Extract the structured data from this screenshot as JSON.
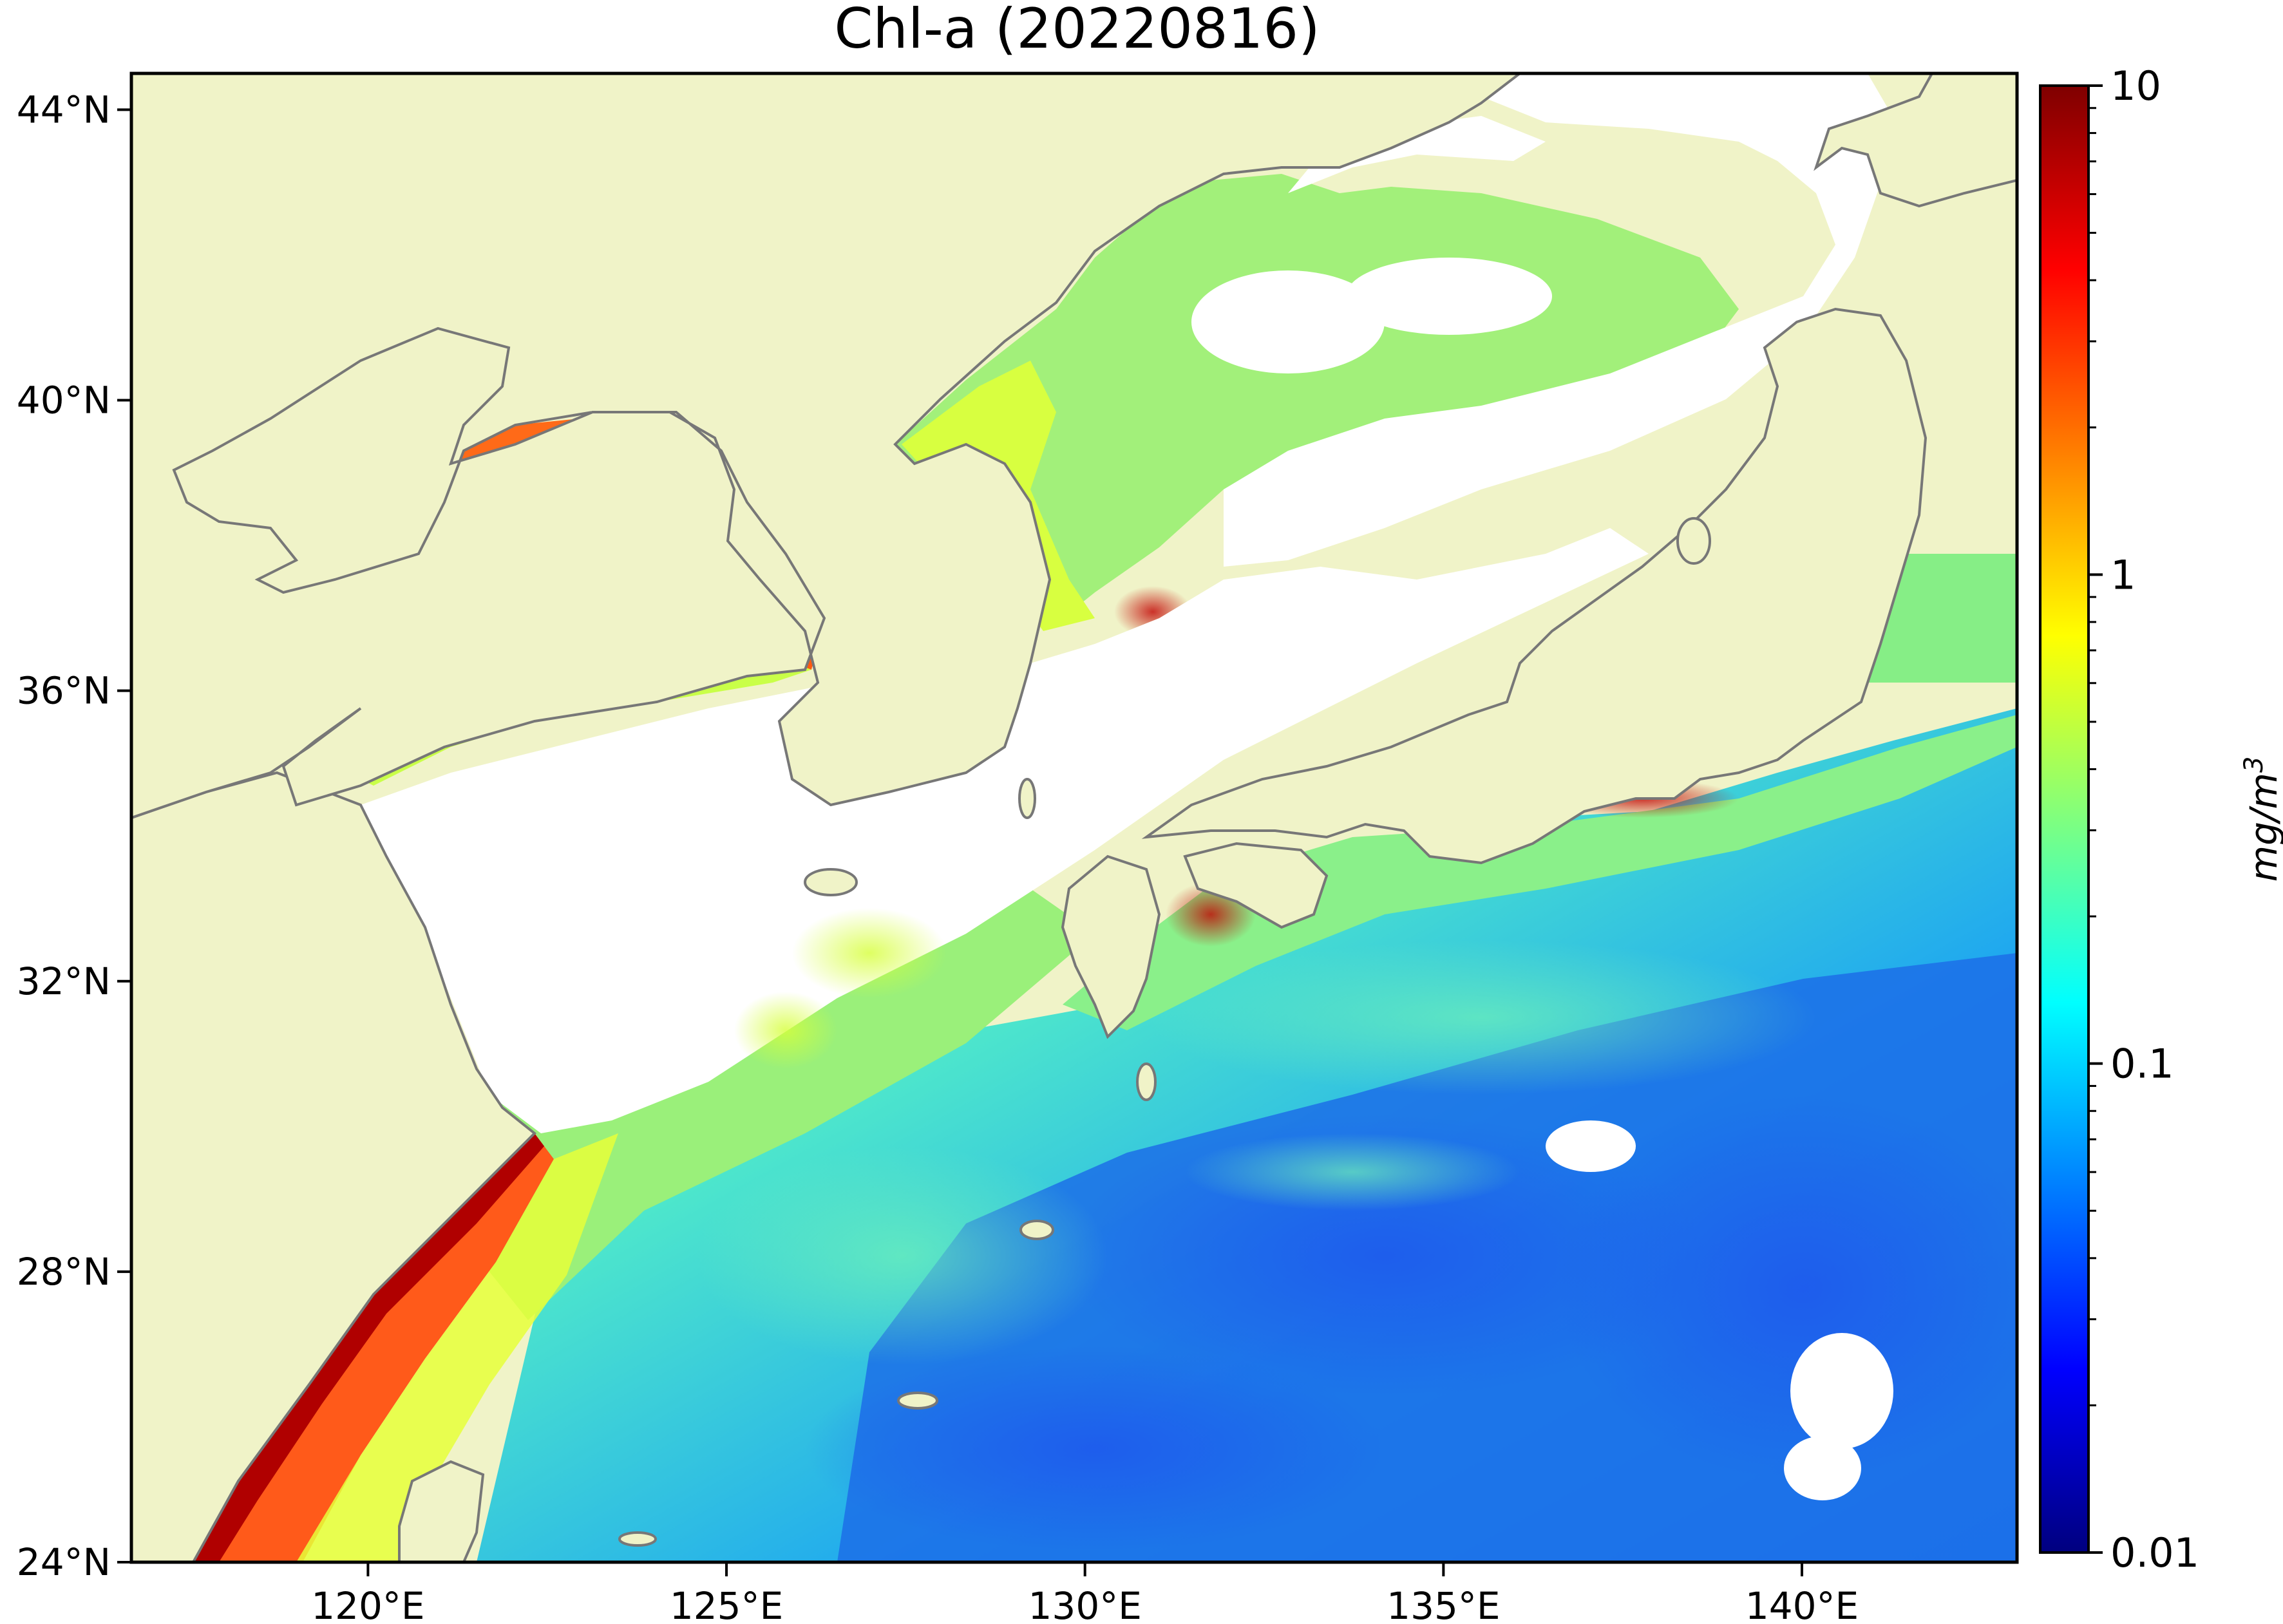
{
  "title": "Chl-a (20220816)",
  "map": {
    "lon_range": [
      116.7,
      143.0
    ],
    "lat_range": [
      24.0,
      44.5
    ],
    "x_ticks": [
      {
        "value": 120,
        "label": "120°E"
      },
      {
        "value": 125,
        "label": "125°E"
      },
      {
        "value": 130,
        "label": "130°E"
      },
      {
        "value": 135,
        "label": "135°E"
      },
      {
        "value": 140,
        "label": "140°E"
      }
    ],
    "y_ticks": [
      {
        "value": 24,
        "label": "24°N"
      },
      {
        "value": 28,
        "label": "28°N"
      },
      {
        "value": 32,
        "label": "32°N"
      },
      {
        "value": 36,
        "label": "36°N"
      },
      {
        "value": 40,
        "label": "40°N"
      },
      {
        "value": 44,
        "label": "44°N"
      }
    ],
    "land_color": "#f0f3c8",
    "coast_color": "#777777",
    "no_data_color": "#ffffff"
  },
  "colorbar": {
    "scale": "log",
    "range": [
      0.01,
      10
    ],
    "ticks": [
      {
        "value": 10,
        "label": "10"
      },
      {
        "value": 1,
        "label": "1"
      },
      {
        "value": 0.1,
        "label": "0.1"
      },
      {
        "value": 0.01,
        "label": "0.01"
      }
    ],
    "units_text": "mg/m",
    "units_superscript": "3",
    "colormap": [
      "#00007f",
      "#0000ff",
      "#007fff",
      "#00ffff",
      "#7fff7f",
      "#ffff00",
      "#ff7f00",
      "#ff0000",
      "#7f0000"
    ]
  }
}
